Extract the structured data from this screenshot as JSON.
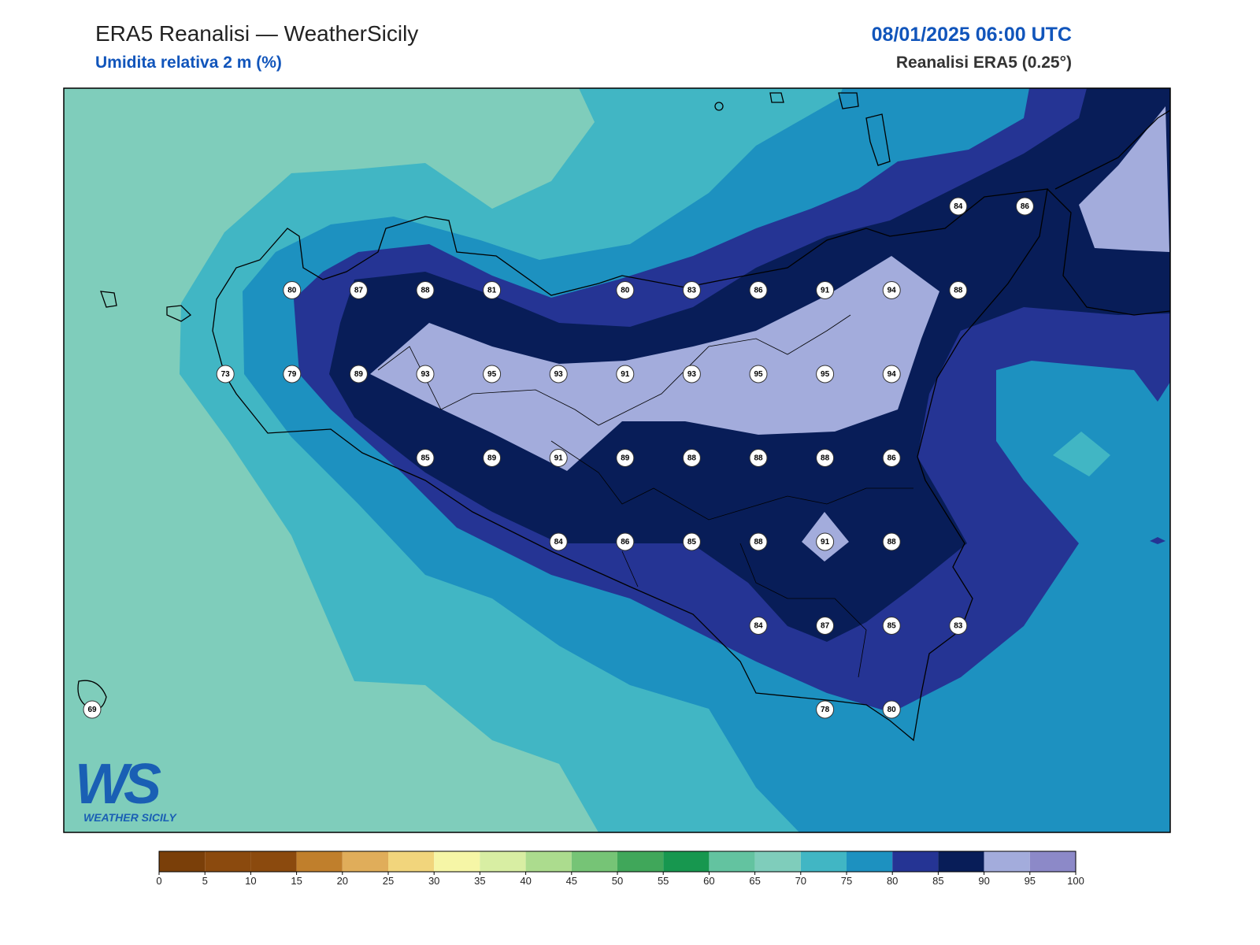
{
  "header": {
    "title": "ERA5 Reanalisi — WeatherSicily",
    "subtitle": "Umidita relativa 2 m (%)",
    "date": "08/01/2025 06:00 UTC",
    "source": "Reanalisi ERA5 (0.25°)"
  },
  "map": {
    "station_grid": [
      [
        null,
        null,
        null,
        null,
        null,
        null,
        null,
        null,
        null,
        null,
        null,
        null,
        null,
        84,
        86
      ],
      [
        null,
        null,
        null,
        80,
        87,
        88,
        81,
        null,
        80,
        83,
        86,
        91,
        94,
        88,
        null
      ],
      [
        null,
        null,
        73,
        79,
        89,
        93,
        95,
        93,
        91,
        93,
        95,
        95,
        94,
        null,
        null
      ],
      [
        null,
        null,
        null,
        null,
        null,
        85,
        89,
        91,
        89,
        88,
        88,
        88,
        86,
        null,
        null
      ],
      [
        null,
        null,
        null,
        null,
        null,
        null,
        null,
        84,
        86,
        85,
        88,
        91,
        88,
        null,
        null
      ],
      [
        null,
        null,
        null,
        null,
        null,
        null,
        null,
        null,
        null,
        null,
        84,
        87,
        85,
        83,
        null
      ],
      [
        69,
        null,
        null,
        null,
        null,
        null,
        null,
        null,
        null,
        null,
        null,
        78,
        80,
        null,
        null
      ]
    ]
  },
  "colorbar": {
    "ticks": [
      0,
      5,
      10,
      15,
      20,
      25,
      30,
      35,
      40,
      45,
      50,
      55,
      60,
      65,
      70,
      75,
      80,
      85,
      90,
      95,
      100
    ],
    "colors": [
      "#7a3f09",
      "#8b4a0e",
      "#8b4a0e",
      "#c07f2c",
      "#e0ad5a",
      "#f1d57c",
      "#f6f6a6",
      "#d8eea3",
      "#acdc8e",
      "#76c476",
      "#40a75a",
      "#17974f",
      "#63c3a0",
      "#7fcdbb",
      "#41b6c4",
      "#1d91c0",
      "#253494",
      "#081d58",
      "#a3acdc",
      "#8c89c8"
    ]
  },
  "logo": {
    "mark": "WS",
    "caption": "WEATHER SICILY"
  }
}
